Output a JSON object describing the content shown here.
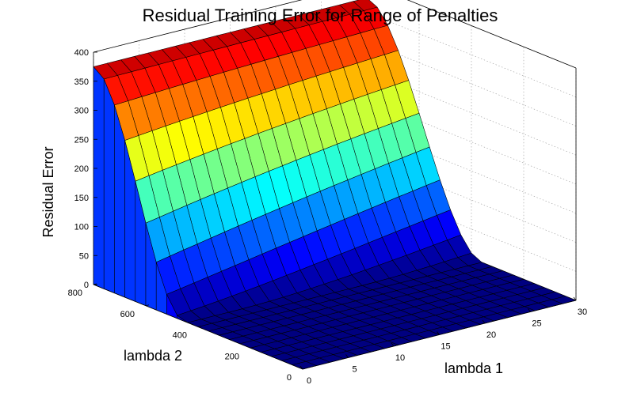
{
  "chart_data": {
    "type": "surface",
    "title": "Residual Training Error for Range of Penalties",
    "zlabel": "Residual Error",
    "xlabel": "lambda 1",
    "ylabel": "lambda 2",
    "colormap": "jet",
    "x_range": [
      0,
      30
    ],
    "y_range": [
      0,
      800
    ],
    "z_range": [
      0,
      400
    ],
    "x_ticks": [
      0,
      5,
      10,
      15,
      20,
      25,
      30
    ],
    "y_ticks": [
      0,
      200,
      400,
      600,
      800
    ],
    "z_ticks": [
      0,
      50,
      100,
      150,
      200,
      250,
      300,
      350,
      400
    ],
    "x_tick_labels": [
      "0",
      "5",
      "10",
      "15",
      "20",
      "25",
      "30"
    ],
    "y_tick_labels": [
      "0",
      "200",
      "400",
      "600",
      "800"
    ],
    "z_tick_labels": [
      "0",
      "50",
      "100",
      "150",
      "200",
      "250",
      "300",
      "350",
      "400"
    ],
    "x_grid": [
      0,
      1.5,
      3,
      4.5,
      6,
      7.5,
      9,
      10.5,
      12,
      13.5,
      15,
      16.5,
      18,
      19.5,
      21,
      22.5,
      24,
      25.5,
      27,
      28.5,
      30
    ],
    "y_grid": [
      0,
      40,
      80,
      120,
      160,
      200,
      240,
      280,
      320,
      360,
      400,
      440,
      480,
      520,
      560,
      600,
      640,
      680,
      720,
      760,
      800
    ],
    "max_error": 375,
    "grid": true
  }
}
